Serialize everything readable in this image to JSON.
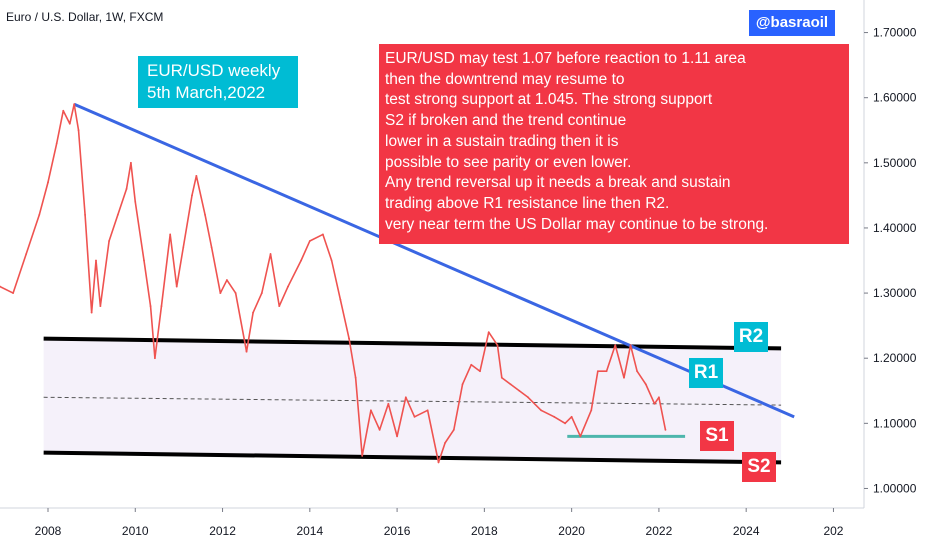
{
  "header": {
    "symbol": "Euro / U.S. Dollar, 1W, FXCM"
  },
  "handle": "@basraoil",
  "weekly_label": [
    "EUR/USD weekly",
    "5th March,2022"
  ],
  "note_lines": [
    "EUR/USD may test 1.07 before reaction to 1.11 area",
    "then the downtrend may resume to",
    "test strong support at 1.045. The strong support",
    "S2 if broken and the trend continue",
    "lower in a sustain trading then it is",
    "possible to see parity or even lower.",
    "Any trend reversal up it needs a break and sustain",
    "trading above R1 resistance line then R2.",
    "very near term the US Dollar may continue to be strong."
  ],
  "labels": {
    "r2": "R2",
    "r1": "R1",
    "s1": "S1",
    "s2": "S2"
  },
  "colors": {
    "price": "#ef5350",
    "trendline": "#3a66e3",
    "channel": "#000000",
    "support_line": "#4db6ac",
    "cyan": "#00bcd4",
    "red": "#f23645",
    "blue_badge": "#2962ff"
  },
  "chart_data": {
    "type": "line",
    "title": "Euro / U.S. Dollar, 1W, FXCM",
    "x_ticks": [
      "2008",
      "2010",
      "2012",
      "2014",
      "2016",
      "2018",
      "2020",
      "2022",
      "2024",
      "202"
    ],
    "y_ticks": [
      "1.00000",
      "1.10000",
      "1.20000",
      "1.30000",
      "1.40000",
      "1.50000",
      "1.60000",
      "1.70000"
    ],
    "xlim": [
      2006.9,
      2026.7
    ],
    "ylim": [
      0.97,
      1.75
    ],
    "grid": false,
    "series": [
      {
        "values": [
          [
            2006.9,
            1.31
          ],
          [
            2007.2,
            1.3
          ],
          [
            2007.5,
            1.36
          ],
          [
            2007.8,
            1.42
          ],
          [
            2008.0,
            1.47
          ],
          [
            2008.2,
            1.53
          ],
          [
            2008.35,
            1.58
          ],
          [
            2008.5,
            1.56
          ],
          [
            2008.6,
            1.59
          ],
          [
            2008.7,
            1.55
          ],
          [
            2008.85,
            1.42
          ],
          [
            2009.0,
            1.27
          ],
          [
            2009.1,
            1.35
          ],
          [
            2009.2,
            1.28
          ],
          [
            2009.4,
            1.38
          ],
          [
            2009.6,
            1.42
          ],
          [
            2009.8,
            1.46
          ],
          [
            2009.9,
            1.5
          ],
          [
            2010.0,
            1.44
          ],
          [
            2010.2,
            1.35
          ],
          [
            2010.35,
            1.28
          ],
          [
            2010.45,
            1.2
          ],
          [
            2010.6,
            1.28
          ],
          [
            2010.8,
            1.39
          ],
          [
            2010.95,
            1.31
          ],
          [
            2011.1,
            1.37
          ],
          [
            2011.3,
            1.45
          ],
          [
            2011.4,
            1.48
          ],
          [
            2011.6,
            1.42
          ],
          [
            2011.75,
            1.37
          ],
          [
            2011.95,
            1.3
          ],
          [
            2012.1,
            1.32
          ],
          [
            2012.3,
            1.3
          ],
          [
            2012.55,
            1.21
          ],
          [
            2012.7,
            1.27
          ],
          [
            2012.9,
            1.3
          ],
          [
            2013.1,
            1.36
          ],
          [
            2013.3,
            1.28
          ],
          [
            2013.5,
            1.31
          ],
          [
            2013.8,
            1.35
          ],
          [
            2014.0,
            1.38
          ],
          [
            2014.3,
            1.39
          ],
          [
            2014.5,
            1.35
          ],
          [
            2014.7,
            1.29
          ],
          [
            2014.9,
            1.23
          ],
          [
            2015.05,
            1.17
          ],
          [
            2015.2,
            1.05
          ],
          [
            2015.4,
            1.12
          ],
          [
            2015.6,
            1.09
          ],
          [
            2015.8,
            1.13
          ],
          [
            2016.0,
            1.08
          ],
          [
            2016.2,
            1.14
          ],
          [
            2016.4,
            1.11
          ],
          [
            2016.7,
            1.12
          ],
          [
            2016.95,
            1.04
          ],
          [
            2017.1,
            1.07
          ],
          [
            2017.3,
            1.09
          ],
          [
            2017.5,
            1.16
          ],
          [
            2017.7,
            1.19
          ],
          [
            2017.9,
            1.18
          ],
          [
            2018.1,
            1.24
          ],
          [
            2018.3,
            1.22
          ],
          [
            2018.4,
            1.17
          ],
          [
            2018.6,
            1.16
          ],
          [
            2018.8,
            1.15
          ],
          [
            2019.0,
            1.14
          ],
          [
            2019.3,
            1.12
          ],
          [
            2019.6,
            1.11
          ],
          [
            2019.85,
            1.1
          ],
          [
            2020.0,
            1.11
          ],
          [
            2020.2,
            1.08
          ],
          [
            2020.45,
            1.12
          ],
          [
            2020.6,
            1.18
          ],
          [
            2020.8,
            1.18
          ],
          [
            2021.0,
            1.22
          ],
          [
            2021.2,
            1.17
          ],
          [
            2021.35,
            1.22
          ],
          [
            2021.5,
            1.18
          ],
          [
            2021.7,
            1.16
          ],
          [
            2021.9,
            1.13
          ],
          [
            2022.0,
            1.14
          ],
          [
            2022.15,
            1.09
          ]
        ]
      }
    ],
    "annotations": {
      "trendline": [
        [
          2008.6,
          1.59
        ],
        [
          2025.1,
          1.11
        ]
      ],
      "channel_top": [
        [
          2007.9,
          1.23
        ],
        [
          2024.8,
          1.215
        ]
      ],
      "channel_bottom": [
        [
          2007.9,
          1.055
        ],
        [
          2024.8,
          1.04
        ]
      ],
      "midline": [
        [
          2007.9,
          1.14
        ],
        [
          2024.8,
          1.128
        ]
      ],
      "support_s1": [
        [
          2019.9,
          1.08
        ],
        [
          2022.6,
          1.08
        ]
      ]
    }
  }
}
